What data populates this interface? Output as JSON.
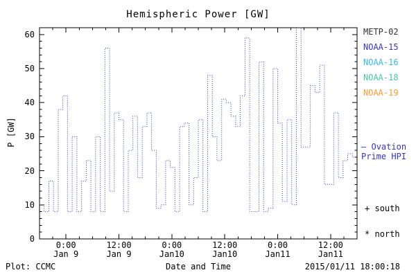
{
  "title": "Hemispheric Power [GW]",
  "axes": {
    "ylabel": "P [GW]",
    "xlabel": "Date and Time",
    "yticks": [
      0,
      10,
      20,
      30,
      40,
      50,
      60
    ],
    "ymax": 62,
    "hours_span": 72,
    "xticks": [
      {
        "time": "0:00",
        "date": "Jan 9",
        "hour": 6
      },
      {
        "time": "12:00",
        "date": "Jan 9",
        "hour": 18
      },
      {
        "time": "0:00",
        "date": "Jan10",
        "hour": 30
      },
      {
        "time": "12:00",
        "date": "Jan10",
        "hour": 42
      },
      {
        "time": "0:00",
        "date": "Jan11",
        "hour": 54
      },
      {
        "time": "12:00",
        "date": "Jan11",
        "hour": 66
      }
    ]
  },
  "legend": {
    "satellites": [
      {
        "label": "METP-02",
        "color": "#333333"
      },
      {
        "label": "NOAA-15",
        "color": "#3333cc"
      },
      {
        "label": "NOAA-16",
        "color": "#33bbee"
      },
      {
        "label": "NOAA-18",
        "color": "#44cc99"
      },
      {
        "label": "NOAA-19",
        "color": "#ff9933"
      }
    ],
    "ovation": {
      "marker": "–",
      "line1": "Ovation",
      "line2": "Prime HPI",
      "color": "#3333cc"
    },
    "south": {
      "marker": "+",
      "label": "south"
    },
    "north": {
      "marker": "*",
      "label": "north"
    }
  },
  "footer": {
    "left": "Plot: CCMC",
    "right": "2015/01/11 18:00:18"
  },
  "chart_data": {
    "type": "line",
    "style": "stepped-dotted",
    "title": "Hemispheric Power [GW]",
    "xlabel": "Date and Time",
    "ylabel": "P [GW]",
    "ylim": [
      0,
      62
    ],
    "grid": false,
    "legend_position": "right-outside",
    "x_span_hours": 72,
    "x_tick_labels": [
      "0:00 Jan 9",
      "12:00 Jan 9",
      "0:00 Jan10",
      "12:00 Jan10",
      "0:00 Jan11",
      "12:00 Jan11"
    ],
    "series": [
      {
        "name": "Ovation Prime HPI",
        "color": "#3333cc",
        "sampling": "uniform steps across x span (values estimated from plot, GW)",
        "values": [
          10,
          8,
          17,
          8,
          38,
          42,
          8,
          30,
          8,
          17,
          23,
          8,
          30,
          8,
          56,
          14,
          37,
          35,
          8,
          26,
          36,
          18,
          33,
          37,
          26,
          9,
          10,
          23,
          21,
          8,
          33,
          34,
          10,
          18,
          35,
          8,
          48,
          30,
          23,
          41,
          40,
          36,
          33,
          42,
          59,
          8,
          8,
          52,
          8,
          9,
          50,
          34,
          11,
          35,
          10,
          62,
          27,
          27,
          45,
          43,
          51,
          16,
          16,
          37,
          18,
          23,
          25,
          24
        ]
      }
    ]
  }
}
